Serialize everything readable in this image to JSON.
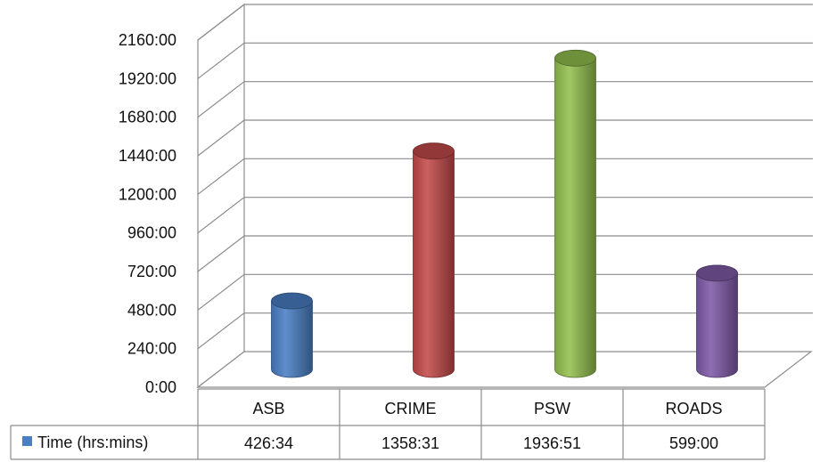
{
  "chart_data": {
    "type": "bar",
    "style": "3d-cylinder",
    "categories": [
      "ASB",
      "CRIME",
      "PSW",
      "ROADS"
    ],
    "series": [
      {
        "name": "Time (hrs:mins)",
        "values": [
          426.57,
          1358.52,
          1936.85,
          599.0
        ],
        "labels": [
          "426:34",
          "1358:31",
          "1936:51",
          "599:00"
        ],
        "colors": [
          "#4a7fc4",
          "#c44a4a",
          "#93c04f",
          "#7f5aa8"
        ]
      }
    ],
    "ylim": [
      0,
      2160
    ],
    "yticks": [
      0,
      240,
      480,
      720,
      960,
      1200,
      1440,
      1680,
      1920,
      2160
    ],
    "ytick_labels": [
      "0:00",
      "240:00",
      "480:00",
      "720:00",
      "960:00",
      "1200:00",
      "1440:00",
      "1680:00",
      "1920:00",
      "2160:00"
    ],
    "grid": true,
    "legend": "data-table-left",
    "legend_color": "#4a7fc4"
  }
}
